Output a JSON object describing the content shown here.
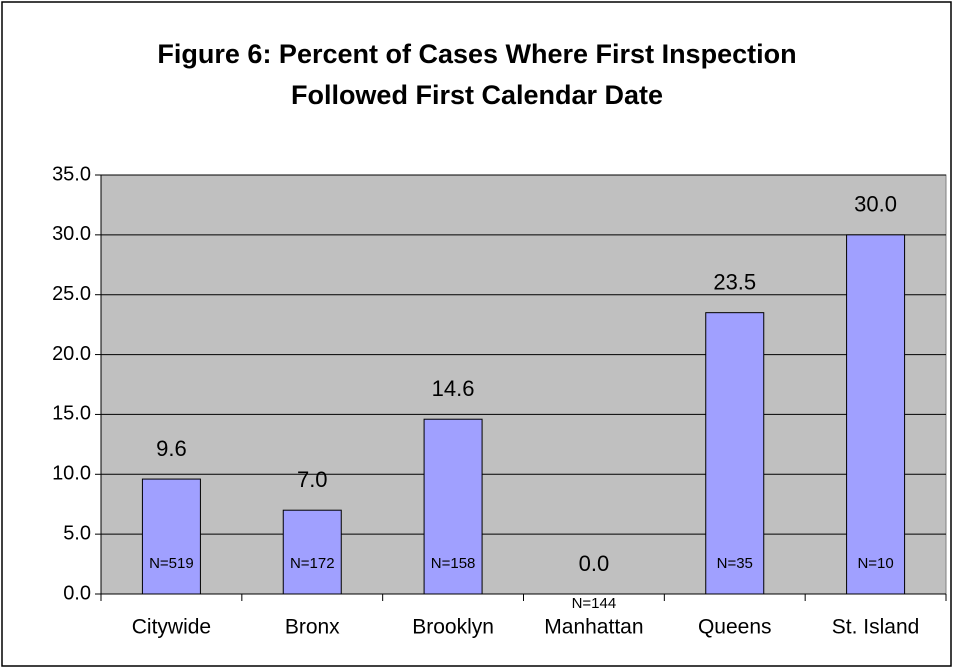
{
  "chart_data": {
    "type": "bar",
    "title": [
      "Figure 6: Percent of Cases Where First Inspection",
      "Followed First Calendar Date"
    ],
    "categories": [
      "Citywide",
      "Bronx",
      "Brooklyn",
      "Manhattan",
      "Queens",
      "St. Island"
    ],
    "values": [
      9.6,
      7.0,
      14.6,
      0.0,
      23.5,
      30.0
    ],
    "value_labels": [
      "9.6",
      "7.0",
      "14.6",
      "0.0",
      "23.5",
      "30.0"
    ],
    "annotations": [
      "N=519",
      "N=172",
      "N=158",
      "N=144",
      "N=35",
      "N=10"
    ],
    "color": "#a0a0ff",
    "ylim": [
      0,
      35
    ],
    "yticks": [
      {
        "value": 0,
        "label": "0.0"
      },
      {
        "value": 5,
        "label": "5.0"
      },
      {
        "value": 10,
        "label": "10.0"
      },
      {
        "value": 15,
        "label": "15.0"
      },
      {
        "value": 20,
        "label": "20.0"
      },
      {
        "value": 25,
        "label": "25.0"
      },
      {
        "value": 30,
        "label": "30.0"
      },
      {
        "value": 35,
        "label": "35.0"
      }
    ],
    "grid": true
  }
}
